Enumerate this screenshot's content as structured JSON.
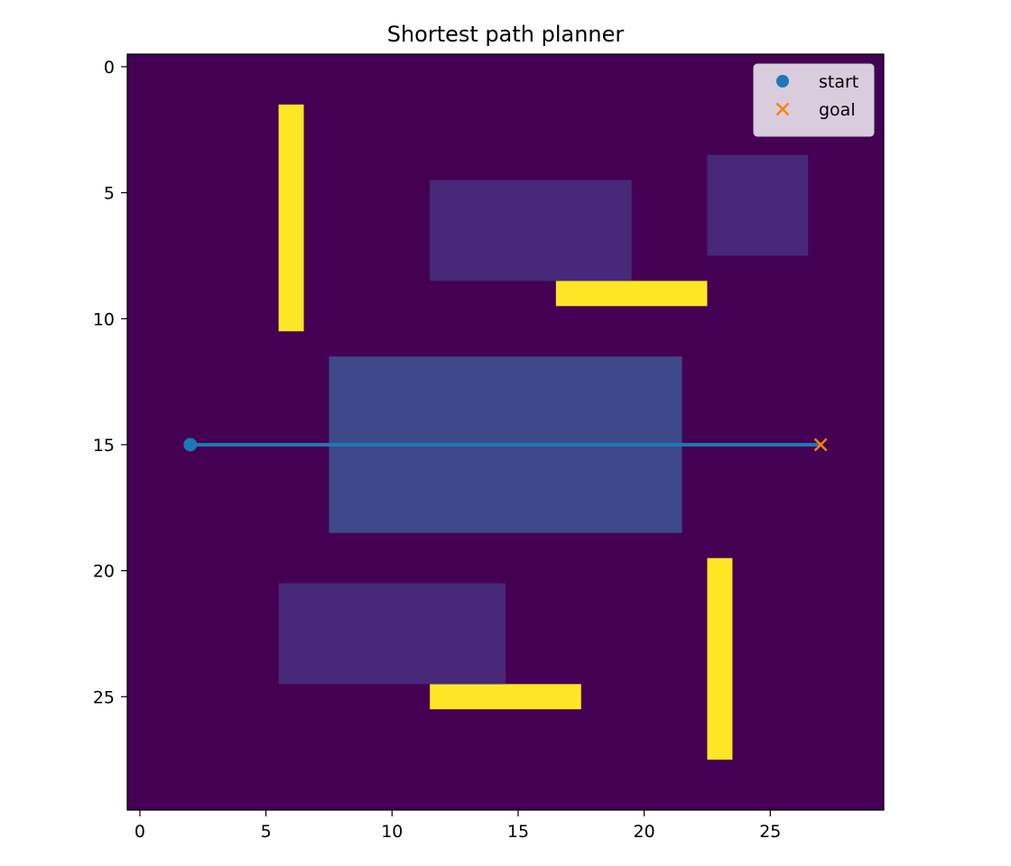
{
  "chart_data": {
    "type": "heatmap",
    "title": "Shortest path planner",
    "xlabel": "",
    "ylabel": "",
    "grid_size": [
      30,
      30
    ],
    "xlim": [
      -0.5,
      29.5
    ],
    "ylim": [
      29.5,
      -0.5
    ],
    "y_inverted": true,
    "grid": false,
    "xticks": [
      0,
      5,
      10,
      15,
      20,
      25
    ],
    "yticks": [
      0,
      5,
      10,
      15,
      20,
      25
    ],
    "colormap": "viridis",
    "background_color": "#440154",
    "regions": [
      {
        "label": "wall",
        "col_start": 6,
        "col_end": 6,
        "row_start": 2,
        "row_end": 10,
        "color": "#fde725"
      },
      {
        "label": "wall",
        "col_start": 17,
        "col_end": 22,
        "row_start": 9,
        "row_end": 9,
        "color": "#fde725"
      },
      {
        "label": "wall",
        "col_start": 23,
        "col_end": 23,
        "row_start": 20,
        "row_end": 27,
        "color": "#fde725"
      },
      {
        "label": "wall",
        "col_start": 12,
        "col_end": 17,
        "row_start": 25,
        "row_end": 25,
        "color": "#fde725"
      },
      {
        "label": "high-cost zone",
        "col_start": 12,
        "col_end": 19,
        "row_start": 5,
        "row_end": 8,
        "color": "#482878"
      },
      {
        "label": "high-cost zone",
        "col_start": 23,
        "col_end": 26,
        "row_start": 4,
        "row_end": 7,
        "color": "#482878"
      },
      {
        "label": "high-cost zone",
        "col_start": 6,
        "col_end": 14,
        "row_start": 21,
        "row_end": 24,
        "color": "#482878"
      },
      {
        "label": "high-cost zone",
        "col_start": 8,
        "col_end": 21,
        "row_start": 12,
        "row_end": 18,
        "color": "#3e4989"
      }
    ],
    "path": {
      "x": [
        2,
        27
      ],
      "y": [
        15,
        15
      ],
      "color": "#1f77b4"
    },
    "start": {
      "name": "start",
      "x": 2,
      "y": 15,
      "color": "#1f77b4",
      "marker": "circle"
    },
    "goal": {
      "name": "goal",
      "x": 27,
      "y": 15,
      "color": "#ff7f0e",
      "marker": "x"
    },
    "legend": {
      "placement": "top-right",
      "entries": [
        {
          "name": "start",
          "color": "#1f77b4",
          "marker": "circle"
        },
        {
          "name": "goal",
          "color": "#ff7f0e",
          "marker": "x"
        }
      ]
    }
  }
}
